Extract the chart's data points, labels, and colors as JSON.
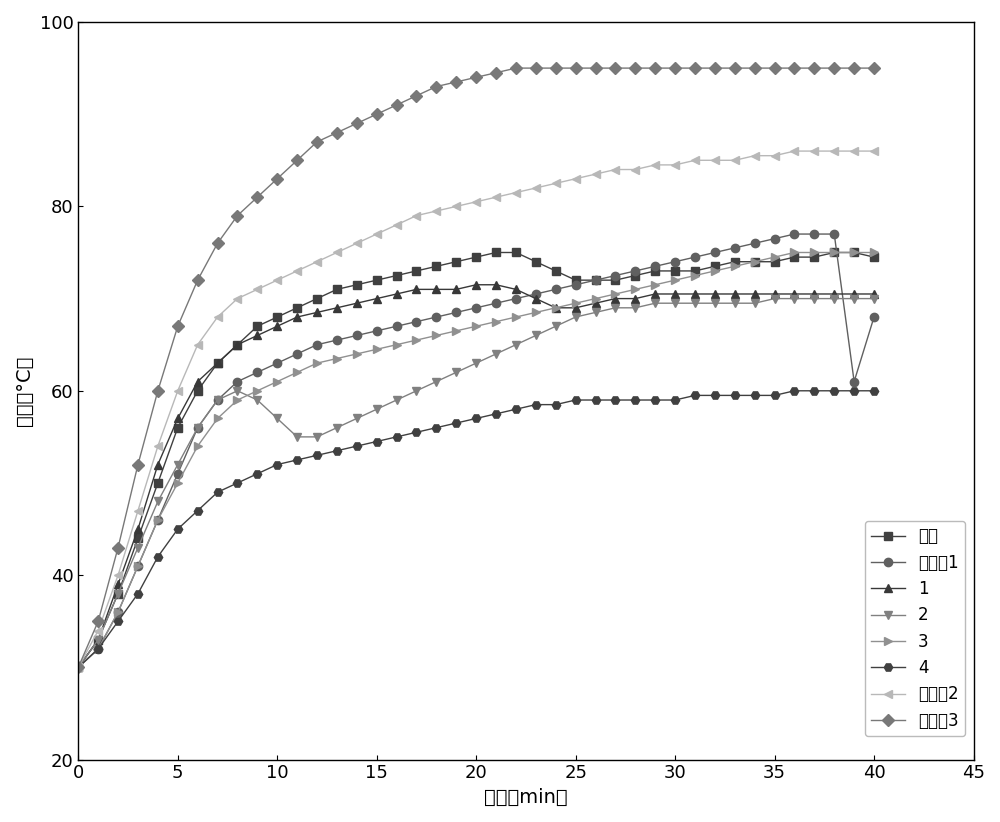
{
  "series": [
    {
      "label": "空白",
      "color": "#404040",
      "marker": "s",
      "markersize": 6,
      "x": [
        0,
        1,
        2,
        3,
        4,
        5,
        6,
        7,
        8,
        9,
        10,
        11,
        12,
        13,
        14,
        15,
        16,
        17,
        18,
        19,
        20,
        21,
        22,
        23,
        24,
        25,
        26,
        27,
        28,
        29,
        30,
        31,
        32,
        33,
        34,
        35,
        36,
        37,
        38,
        39,
        40
      ],
      "y": [
        30,
        33,
        38,
        44,
        50,
        56,
        60,
        63,
        65,
        67,
        68,
        69,
        70,
        71,
        71.5,
        72,
        72.5,
        73,
        73.5,
        74,
        74.5,
        75,
        75,
        74,
        73,
        72,
        72,
        72,
        72.5,
        73,
        73,
        73,
        73.5,
        74,
        74,
        74,
        74.5,
        74.5,
        75,
        75,
        74.5
      ]
    },
    {
      "label": "对比例1",
      "color": "#606060",
      "marker": "o",
      "markersize": 6,
      "x": [
        0,
        1,
        2,
        3,
        4,
        5,
        6,
        7,
        8,
        9,
        10,
        11,
        12,
        13,
        14,
        15,
        16,
        17,
        18,
        19,
        20,
        21,
        22,
        23,
        24,
        25,
        26,
        27,
        28,
        29,
        30,
        31,
        32,
        33,
        34,
        35,
        36,
        37,
        38,
        39,
        40
      ],
      "y": [
        30,
        32,
        36,
        41,
        46,
        51,
        56,
        59,
        61,
        62,
        63,
        64,
        65,
        65.5,
        66,
        66.5,
        67,
        67.5,
        68,
        68.5,
        69,
        69.5,
        70,
        70.5,
        71,
        71.5,
        72,
        72.5,
        73,
        73.5,
        74,
        74.5,
        75,
        75.5,
        76,
        76.5,
        77,
        77,
        77,
        61,
        68
      ]
    },
    {
      "label": "1",
      "color": "#383838",
      "marker": "^",
      "markersize": 6,
      "x": [
        0,
        1,
        2,
        3,
        4,
        5,
        6,
        7,
        8,
        9,
        10,
        11,
        12,
        13,
        14,
        15,
        16,
        17,
        18,
        19,
        20,
        21,
        22,
        23,
        24,
        25,
        26,
        27,
        28,
        29,
        30,
        31,
        32,
        33,
        34,
        35,
        36,
        37,
        38,
        39,
        40
      ],
      "y": [
        30,
        33,
        39,
        45,
        52,
        57,
        61,
        63,
        65,
        66,
        67,
        68,
        68.5,
        69,
        69.5,
        70,
        70.5,
        71,
        71,
        71,
        71.5,
        71.5,
        71,
        70,
        69,
        69,
        69.5,
        70,
        70,
        70.5,
        70.5,
        70.5,
        70.5,
        70.5,
        70.5,
        70.5,
        70.5,
        70.5,
        70.5,
        70.5,
        70.5
      ]
    },
    {
      "label": "2",
      "color": "#808080",
      "marker": "v",
      "markersize": 6,
      "x": [
        0,
        1,
        2,
        3,
        4,
        5,
        6,
        7,
        8,
        9,
        10,
        11,
        12,
        13,
        14,
        15,
        16,
        17,
        18,
        19,
        20,
        21,
        22,
        23,
        24,
        25,
        26,
        27,
        28,
        29,
        30,
        31,
        32,
        33,
        34,
        35,
        36,
        37,
        38,
        39,
        40
      ],
      "y": [
        30,
        33,
        38,
        43,
        48,
        52,
        56,
        59,
        60,
        59,
        57,
        55,
        55,
        56,
        57,
        58,
        59,
        60,
        61,
        62,
        63,
        64,
        65,
        66,
        67,
        68,
        68.5,
        69,
        69,
        69.5,
        69.5,
        69.5,
        69.5,
        69.5,
        69.5,
        70,
        70,
        70,
        70,
        70,
        70
      ]
    },
    {
      "label": "3",
      "color": "#909090",
      "marker": ">",
      "markersize": 6,
      "x": [
        0,
        1,
        2,
        3,
        4,
        5,
        6,
        7,
        8,
        9,
        10,
        11,
        12,
        13,
        14,
        15,
        16,
        17,
        18,
        19,
        20,
        21,
        22,
        23,
        24,
        25,
        26,
        27,
        28,
        29,
        30,
        31,
        32,
        33,
        34,
        35,
        36,
        37,
        38,
        39,
        40
      ],
      "y": [
        30,
        32,
        36,
        41,
        46,
        50,
        54,
        57,
        59,
        60,
        61,
        62,
        63,
        63.5,
        64,
        64.5,
        65,
        65.5,
        66,
        66.5,
        67,
        67.5,
        68,
        68.5,
        69,
        69.5,
        70,
        70.5,
        71,
        71.5,
        72,
        72.5,
        73,
        73.5,
        74,
        74.5,
        75,
        75,
        75,
        75,
        75
      ]
    },
    {
      "label": "4",
      "color": "#404040",
      "marker": "H",
      "markersize": 6,
      "x": [
        0,
        1,
        2,
        3,
        4,
        5,
        6,
        7,
        8,
        9,
        10,
        11,
        12,
        13,
        14,
        15,
        16,
        17,
        18,
        19,
        20,
        21,
        22,
        23,
        24,
        25,
        26,
        27,
        28,
        29,
        30,
        31,
        32,
        33,
        34,
        35,
        36,
        37,
        38,
        39,
        40
      ],
      "y": [
        30,
        32,
        35,
        38,
        42,
        45,
        47,
        49,
        50,
        51,
        52,
        52.5,
        53,
        53.5,
        54,
        54.5,
        55,
        55.5,
        56,
        56.5,
        57,
        57.5,
        58,
        58.5,
        58.5,
        59,
        59,
        59,
        59,
        59,
        59,
        59.5,
        59.5,
        59.5,
        59.5,
        59.5,
        60,
        60,
        60,
        60,
        60
      ]
    },
    {
      "label": "对比例2",
      "color": "#b8b8b8",
      "marker": "<",
      "markersize": 6,
      "x": [
        0,
        1,
        2,
        3,
        4,
        5,
        6,
        7,
        8,
        9,
        10,
        11,
        12,
        13,
        14,
        15,
        16,
        17,
        18,
        19,
        20,
        21,
        22,
        23,
        24,
        25,
        26,
        27,
        28,
        29,
        30,
        31,
        32,
        33,
        34,
        35,
        36,
        37,
        38,
        39,
        40
      ],
      "y": [
        30,
        34,
        40,
        47,
        54,
        60,
        65,
        68,
        70,
        71,
        72,
        73,
        74,
        75,
        76,
        77,
        78,
        79,
        79.5,
        80,
        80.5,
        81,
        81.5,
        82,
        82.5,
        83,
        83.5,
        84,
        84,
        84.5,
        84.5,
        85,
        85,
        85,
        85.5,
        85.5,
        86,
        86,
        86,
        86,
        86
      ]
    },
    {
      "label": "对比例3",
      "color": "#787878",
      "marker": "D",
      "markersize": 6,
      "x": [
        0,
        1,
        2,
        3,
        4,
        5,
        6,
        7,
        8,
        9,
        10,
        11,
        12,
        13,
        14,
        15,
        16,
        17,
        18,
        19,
        20,
        21,
        22,
        23,
        24,
        25,
        26,
        27,
        28,
        29,
        30,
        31,
        32,
        33,
        34,
        35,
        36,
        37,
        38,
        39,
        40
      ],
      "y": [
        30,
        35,
        43,
        52,
        60,
        67,
        72,
        76,
        79,
        81,
        83,
        85,
        87,
        88,
        89,
        90,
        91,
        92,
        93,
        93.5,
        94,
        94.5,
        95,
        95,
        95,
        95,
        95,
        95,
        95,
        95,
        95,
        95,
        95,
        95,
        95,
        95,
        95,
        95,
        95,
        95,
        95
      ]
    }
  ],
  "xlabel": "时间（min）",
  "ylabel": "温度（°C）",
  "xlim": [
    0,
    45
  ],
  "ylim": [
    20,
    100
  ],
  "xticks": [
    0,
    5,
    10,
    15,
    20,
    25,
    30,
    35,
    40,
    45
  ],
  "yticks": [
    20,
    40,
    60,
    80,
    100
  ],
  "background_color": "#ffffff",
  "linewidth": 1.0
}
